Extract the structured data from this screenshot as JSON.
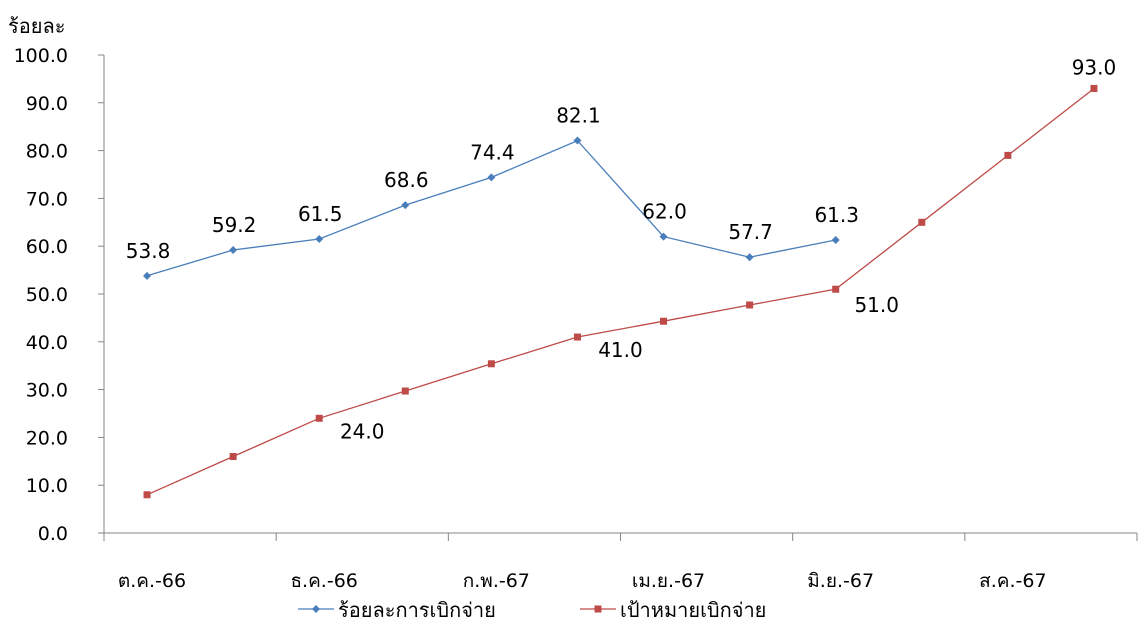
{
  "chart_data": {
    "type": "line",
    "ylabel": "ร้อยละ",
    "ylim": [
      0,
      100
    ],
    "yticks": [
      "0.0",
      "10.0",
      "20.0",
      "30.0",
      "40.0",
      "50.0",
      "60.0",
      "70.0",
      "80.0",
      "90.0",
      "100.0"
    ],
    "x_tick_labels": [
      "ต.ค.-66",
      "ธ.ค.-66",
      "ก.พ.-67",
      "เม.ย.-67",
      "มิ.ย.-67",
      "ส.ค.-67"
    ],
    "n_points": 12,
    "legend_position": "bottom",
    "series": [
      {
        "name": "ร้อยละการเบิกจ่าย",
        "color": "#4a7ebb",
        "marker": "diamond",
        "values": [
          53.8,
          59.2,
          61.5,
          68.6,
          74.4,
          82.1,
          62.0,
          57.7,
          61.3
        ],
        "labels": [
          "53.8",
          "59.2",
          "61.5",
          "68.6",
          "74.4",
          "82.1",
          "62.0",
          "57.7",
          "61.3"
        ]
      },
      {
        "name": "เป้าหมายเบิกจ่าย",
        "color": "#be4b48",
        "marker": "square",
        "values": [
          8.0,
          16.0,
          24.0,
          29.7,
          35.4,
          41.0,
          44.3,
          47.7,
          51.0,
          65.0,
          79.0,
          93.0
        ],
        "labels": {
          "2": "24.0",
          "5": "41.0",
          "8": "51.0",
          "11": "93.0"
        }
      }
    ]
  }
}
